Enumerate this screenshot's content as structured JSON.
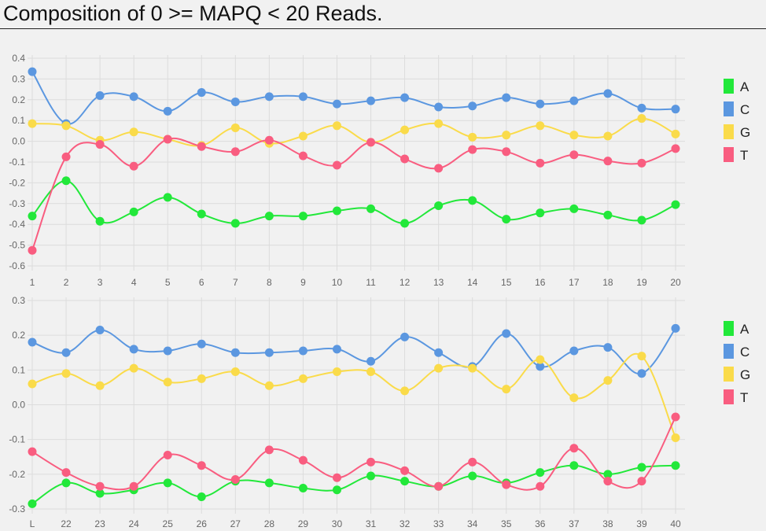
{
  "title": "Composition of 0 >= MAPQ < 20 Reads.",
  "chart_data": [
    {
      "type": "line",
      "categories": [
        "1",
        "2",
        "3",
        "4",
        "5",
        "6",
        "7",
        "8",
        "9",
        "10",
        "11",
        "12",
        "13",
        "14",
        "15",
        "16",
        "17",
        "18",
        "19",
        "20"
      ],
      "ylim": [
        -0.6,
        0.4
      ],
      "yticks": [
        "0.4",
        "0.3",
        "0.2",
        "0.1",
        "0.0",
        "-0.1",
        "-0.2",
        "-0.3",
        "-0.4",
        "-0.5",
        "-0.6"
      ],
      "grid": true,
      "legend": "right",
      "series": [
        {
          "name": "A",
          "color": "#22e83a",
          "values": [
            -0.36,
            -0.19,
            -0.385,
            -0.34,
            -0.27,
            -0.35,
            -0.395,
            -0.36,
            -0.36,
            -0.335,
            -0.325,
            -0.395,
            -0.31,
            -0.285,
            -0.375,
            -0.345,
            -0.325,
            -0.355,
            -0.38,
            -0.305
          ]
        },
        {
          "name": "C",
          "color": "#5b97e0",
          "values": [
            0.335,
            0.085,
            0.22,
            0.215,
            0.145,
            0.235,
            0.19,
            0.215,
            0.215,
            0.18,
            0.195,
            0.21,
            0.165,
            0.17,
            0.21,
            0.18,
            0.195,
            0.23,
            0.16,
            0.155
          ]
        },
        {
          "name": "G",
          "color": "#fadb4a",
          "values": [
            0.085,
            0.075,
            0.005,
            0.045,
            0.01,
            -0.02,
            0.065,
            -0.01,
            0.025,
            0.075,
            -0.005,
            0.055,
            0.085,
            0.02,
            0.03,
            0.075,
            0.03,
            0.025,
            0.11,
            0.035
          ]
        },
        {
          "name": "T",
          "color": "#f95d80",
          "values": [
            -0.525,
            -0.075,
            -0.015,
            -0.12,
            0.01,
            -0.025,
            -0.05,
            0.005,
            -0.07,
            -0.115,
            -0.005,
            -0.085,
            -0.13,
            -0.04,
            -0.05,
            -0.105,
            -0.065,
            -0.095,
            -0.105,
            -0.035
          ]
        }
      ]
    },
    {
      "type": "line",
      "categories": [
        "L",
        "22",
        "23",
        "24",
        "25",
        "26",
        "27",
        "28",
        "29",
        "30",
        "31",
        "32",
        "33",
        "34",
        "35",
        "36",
        "37",
        "38",
        "39",
        "40"
      ],
      "ylim": [
        -0.3,
        0.3
      ],
      "yticks": [
        "0.3",
        "0.2",
        "0.1",
        "0.0",
        "-0.1",
        "-0.2",
        "-0.3"
      ],
      "grid": true,
      "legend": "right",
      "series": [
        {
          "name": "A",
          "color": "#22e83a",
          "values": [
            -0.285,
            -0.225,
            -0.255,
            -0.245,
            -0.225,
            -0.265,
            -0.22,
            -0.225,
            -0.24,
            -0.245,
            -0.205,
            -0.22,
            -0.235,
            -0.205,
            -0.225,
            -0.195,
            -0.175,
            -0.2,
            -0.18,
            -0.175
          ]
        },
        {
          "name": "C",
          "color": "#5b97e0",
          "values": [
            0.18,
            0.15,
            0.215,
            0.16,
            0.155,
            0.175,
            0.15,
            0.15,
            0.155,
            0.16,
            0.125,
            0.195,
            0.15,
            0.11,
            0.205,
            0.11,
            0.155,
            0.165,
            0.09,
            0.22
          ]
        },
        {
          "name": "G",
          "color": "#fadb4a",
          "values": [
            0.06,
            0.09,
            0.055,
            0.105,
            0.065,
            0.075,
            0.095,
            0.055,
            0.075,
            0.095,
            0.095,
            0.04,
            0.105,
            0.105,
            0.045,
            0.13,
            0.02,
            0.07,
            0.14,
            -0.095
          ]
        },
        {
          "name": "T",
          "color": "#f95d80",
          "values": [
            -0.135,
            -0.195,
            -0.235,
            -0.235,
            -0.145,
            -0.175,
            -0.215,
            -0.13,
            -0.16,
            -0.21,
            -0.165,
            -0.19,
            -0.235,
            -0.165,
            -0.23,
            -0.235,
            -0.125,
            -0.22,
            -0.22,
            -0.035
          ]
        }
      ]
    }
  ]
}
